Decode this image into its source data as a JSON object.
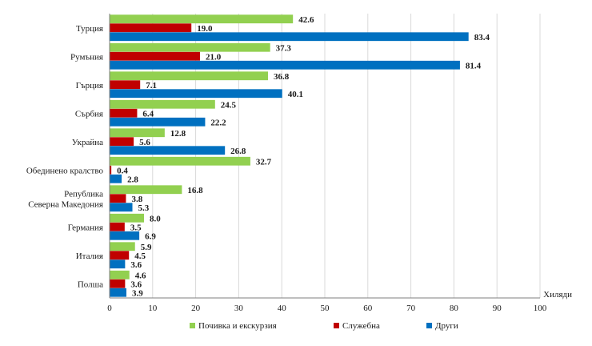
{
  "chart_data": {
    "type": "bar",
    "orientation": "horizontal",
    "categories": [
      [
        "Турция"
      ],
      [
        "Румъния"
      ],
      [
        "Гърция"
      ],
      [
        "Сърбия"
      ],
      [
        "Украйна"
      ],
      [
        "Обединено кралство"
      ],
      [
        "Република",
        "Северна Македония"
      ],
      [
        "Германия"
      ],
      [
        "Италия"
      ],
      [
        "Полша"
      ]
    ],
    "series": [
      {
        "name": "Почивка и екскурзия",
        "color": "#92d050",
        "values": [
          42.6,
          37.3,
          36.8,
          24.5,
          12.8,
          32.7,
          16.8,
          8.0,
          5.9,
          4.6
        ]
      },
      {
        "name": "Служебна",
        "color": "#c00000",
        "values": [
          19.0,
          21.0,
          7.1,
          6.4,
          5.6,
          0.4,
          3.8,
          3.5,
          4.5,
          3.6
        ]
      },
      {
        "name": "Други",
        "color": "#0070c0",
        "values": [
          83.4,
          81.4,
          40.1,
          22.2,
          26.8,
          2.8,
          5.3,
          6.9,
          3.6,
          3.9
        ]
      }
    ],
    "xlim": [
      0,
      100
    ],
    "xticks": [
      0,
      10,
      20,
      30,
      40,
      50,
      60,
      70,
      80,
      90,
      100
    ],
    "xlabel": "Хиляди",
    "grid": true,
    "legend_position": "bottom"
  }
}
